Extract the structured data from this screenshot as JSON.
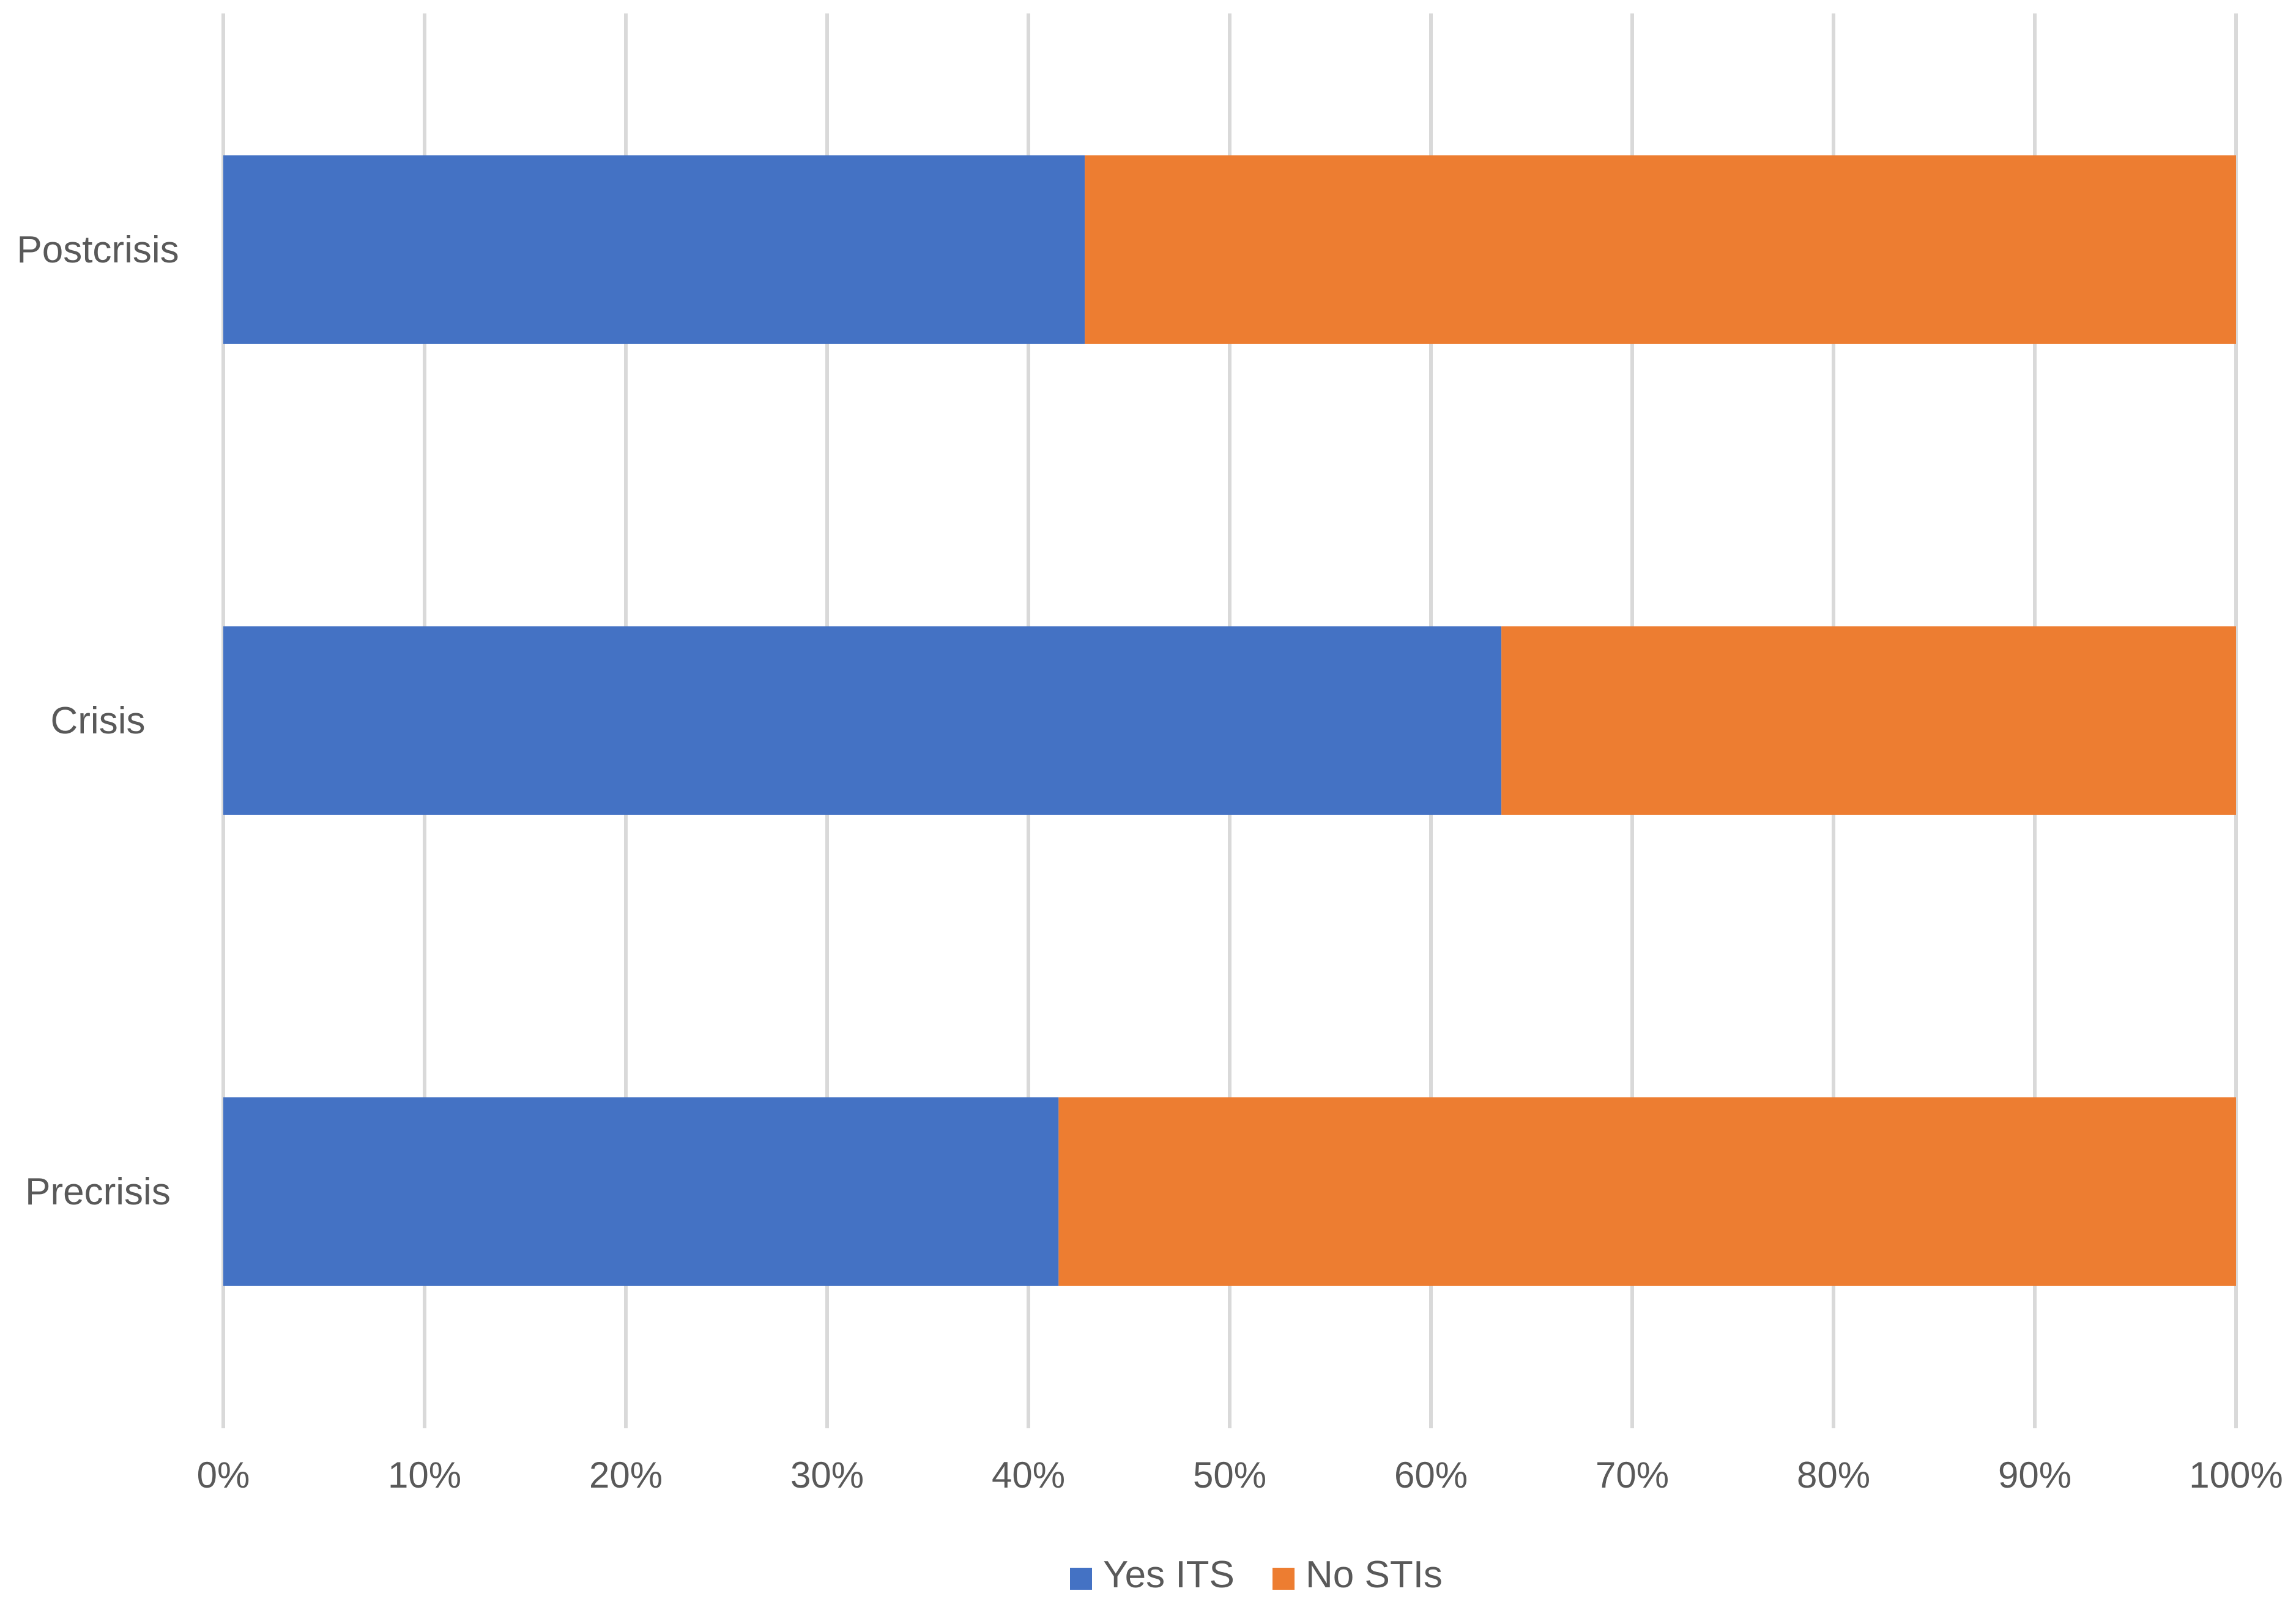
{
  "chart_data": {
    "type": "bar",
    "orientation": "horizontal",
    "stacked": true,
    "percent_stacked": true,
    "categories": [
      "Postcrisis",
      "Crisis",
      "Precrisis"
    ],
    "series": [
      {
        "name": "Yes ITS",
        "color": "#4472c4",
        "values": [
          42.8,
          63.5,
          41.5
        ]
      },
      {
        "name": "No STIs",
        "color": "#ed7d31",
        "values": [
          57.2,
          36.5,
          58.5
        ]
      }
    ],
    "x_ticks": [
      "0%",
      "10%",
      "20%",
      "30%",
      "40%",
      "50%",
      "60%",
      "70%",
      "80%",
      "90%",
      "100%"
    ],
    "xlim": [
      0,
      100
    ],
    "grid": "vertical",
    "legend_position": "bottom"
  }
}
